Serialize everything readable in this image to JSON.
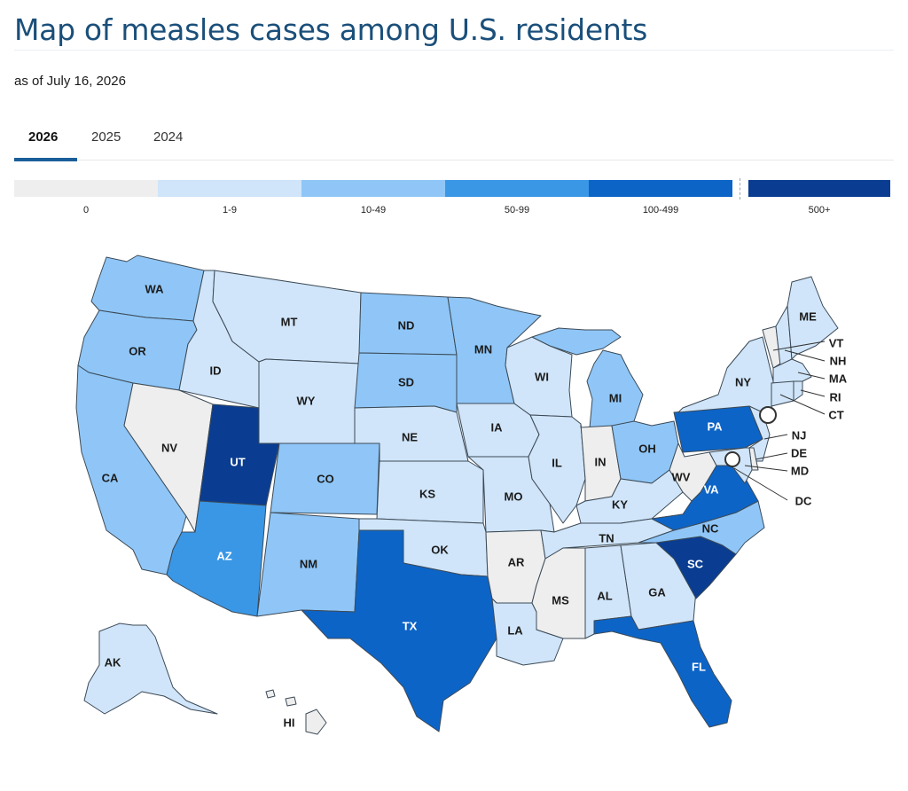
{
  "page": {
    "title": "Map of measles cases among U.S. residents",
    "as_of": "as of July 16, 2026"
  },
  "tabs": [
    {
      "label": "2026",
      "active": true
    },
    {
      "label": "2025",
      "active": false
    },
    {
      "label": "2024",
      "active": false
    }
  ],
  "legend": [
    {
      "label": "0",
      "color": "#eeeeee"
    },
    {
      "label": "1-9",
      "color": "#d0e5f9"
    },
    {
      "label": "10-49",
      "color": "#8fc6f7"
    },
    {
      "label": "50-99",
      "color": "#3a97e6"
    },
    {
      "label": "100-499",
      "color": "#0d64c7"
    },
    {
      "label": "500+",
      "color": "#0a3d91"
    }
  ],
  "colors": {
    "0": "#eeeeee",
    "1-9": "#d0e5f9",
    "10-49": "#8fc6f7",
    "50-99": "#3a97e6",
    "100-499": "#0d64c7",
    "500+": "#0a3d91"
  },
  "states": [
    {
      "code": "WA",
      "bin": "10-49"
    },
    {
      "code": "OR",
      "bin": "10-49"
    },
    {
      "code": "CA",
      "bin": "10-49"
    },
    {
      "code": "ID",
      "bin": "1-9"
    },
    {
      "code": "NV",
      "bin": "0"
    },
    {
      "code": "MT",
      "bin": "1-9"
    },
    {
      "code": "WY",
      "bin": "1-9"
    },
    {
      "code": "UT",
      "bin": "500+"
    },
    {
      "code": "AZ",
      "bin": "50-99"
    },
    {
      "code": "CO",
      "bin": "10-49"
    },
    {
      "code": "NM",
      "bin": "10-49"
    },
    {
      "code": "ND",
      "bin": "10-49"
    },
    {
      "code": "SD",
      "bin": "10-49"
    },
    {
      "code": "NE",
      "bin": "1-9"
    },
    {
      "code": "KS",
      "bin": "1-9"
    },
    {
      "code": "OK",
      "bin": "1-9"
    },
    {
      "code": "TX",
      "bin": "100-499"
    },
    {
      "code": "MN",
      "bin": "10-49"
    },
    {
      "code": "IA",
      "bin": "1-9"
    },
    {
      "code": "MO",
      "bin": "1-9"
    },
    {
      "code": "AR",
      "bin": "0"
    },
    {
      "code": "LA",
      "bin": "1-9"
    },
    {
      "code": "WI",
      "bin": "1-9"
    },
    {
      "code": "IL",
      "bin": "1-9"
    },
    {
      "code": "MI",
      "bin": "10-49"
    },
    {
      "code": "IN",
      "bin": "0"
    },
    {
      "code": "OH",
      "bin": "10-49"
    },
    {
      "code": "KY",
      "bin": "1-9"
    },
    {
      "code": "TN",
      "bin": "1-9"
    },
    {
      "code": "MS",
      "bin": "0"
    },
    {
      "code": "AL",
      "bin": "1-9"
    },
    {
      "code": "GA",
      "bin": "1-9"
    },
    {
      "code": "FL",
      "bin": "100-499"
    },
    {
      "code": "SC",
      "bin": "500+"
    },
    {
      "code": "NC",
      "bin": "10-49"
    },
    {
      "code": "VA",
      "bin": "100-499"
    },
    {
      "code": "WV",
      "bin": "0"
    },
    {
      "code": "PA",
      "bin": "100-499"
    },
    {
      "code": "NY",
      "bin": "1-9"
    },
    {
      "code": "VT",
      "bin": "0"
    },
    {
      "code": "NH",
      "bin": "1-9"
    },
    {
      "code": "ME",
      "bin": "1-9"
    },
    {
      "code": "MA",
      "bin": "1-9"
    },
    {
      "code": "RI",
      "bin": "1-9"
    },
    {
      "code": "CT",
      "bin": "1-9"
    },
    {
      "code": "NJ",
      "bin": "1-9"
    },
    {
      "code": "DE",
      "bin": "0"
    },
    {
      "code": "MD",
      "bin": "1-9"
    },
    {
      "code": "DC",
      "bin": "0"
    },
    {
      "code": "AK",
      "bin": "1-9"
    },
    {
      "code": "HI",
      "bin": "0"
    }
  ]
}
